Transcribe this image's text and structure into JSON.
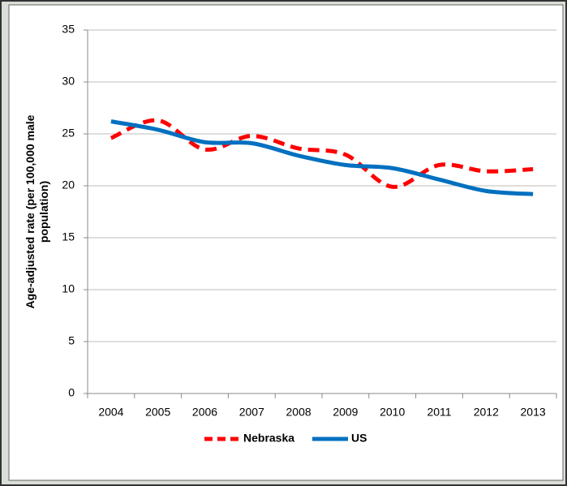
{
  "chart_data": {
    "type": "line",
    "ylabel": [
      "Age-adjusted rate (per 100,000 male",
      "population)"
    ],
    "categories": [
      "2004",
      "2005",
      "2006",
      "2007",
      "2008",
      "2009",
      "2010",
      "2011",
      "2012",
      "2013"
    ],
    "series": [
      {
        "name": "Nebraska",
        "color": "#ff0000",
        "dashed": true,
        "values": [
          24.6,
          26.3,
          23.5,
          24.8,
          23.6,
          23.0,
          19.9,
          22.0,
          21.4,
          21.6
        ]
      },
      {
        "name": "US",
        "color": "#0070c0",
        "dashed": false,
        "values": [
          26.2,
          25.4,
          24.2,
          24.1,
          22.9,
          22.0,
          21.7,
          20.6,
          19.5,
          19.2
        ]
      }
    ],
    "ylim": [
      0,
      35
    ],
    "yticks": [
      0,
      5,
      10,
      15,
      20,
      25,
      30,
      35
    ],
    "grid": true,
    "legend": "bottom"
  }
}
